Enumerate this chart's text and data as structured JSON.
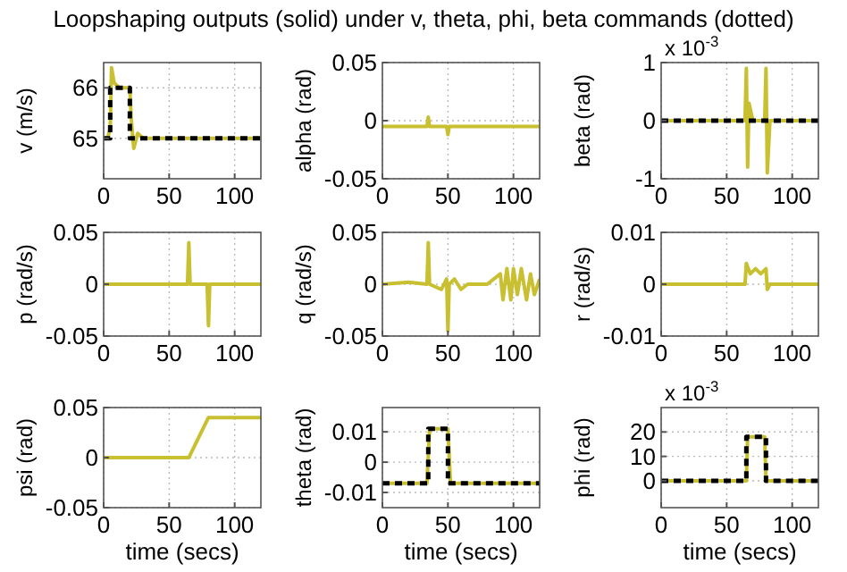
{
  "chart_data": [
    {
      "type": "line",
      "title": "Loopshaping outputs (solid) under v, theta, phi, beta commands (dotted)",
      "ylabel": "v (m/s)",
      "xlim": [
        0,
        120
      ],
      "xticks": [
        0,
        50,
        100
      ],
      "ylim": [
        64.2,
        66.5
      ],
      "yticks": [
        65,
        66
      ],
      "grid": true,
      "series": [
        {
          "color": "#c8c030",
          "line_style": "solid",
          "x": [
            0,
            3,
            5,
            6,
            8,
            12,
            18,
            20,
            21,
            23,
            26,
            30,
            40,
            60,
            80,
            100,
            120
          ],
          "values": [
            65,
            65,
            65.2,
            66.4,
            66.1,
            66,
            66,
            66,
            65.4,
            64.8,
            65.1,
            65,
            65,
            65,
            65,
            65,
            65
          ]
        },
        {
          "color": "#000000",
          "line_style": "dotted",
          "x": [
            0,
            5,
            5,
            20,
            20,
            120
          ],
          "values": [
            65,
            65,
            66,
            66,
            65,
            65
          ]
        }
      ]
    },
    {
      "type": "line",
      "ylabel": "alpha (rad)",
      "xlim": [
        0,
        120
      ],
      "xticks": [
        0,
        50,
        100
      ],
      "ylim": [
        -0.05,
        0.05
      ],
      "yticks": [
        -0.05,
        0,
        0.05
      ],
      "grid": true,
      "series": [
        {
          "color": "#c8c030",
          "line_style": "solid",
          "x": [
            0,
            34,
            35,
            36,
            49,
            50,
            51,
            120
          ],
          "values": [
            -0.005,
            -0.005,
            0.003,
            -0.005,
            -0.005,
            -0.012,
            -0.005,
            -0.005
          ]
        }
      ]
    },
    {
      "type": "line",
      "ylabel": "beta (rad)",
      "annotations": [
        "x 10$^{-3}$"
      ],
      "xlim": [
        0,
        120
      ],
      "xticks": [
        0,
        50,
        100
      ],
      "ylim": [
        -1,
        1
      ],
      "yticks": [
        -1,
        0,
        1
      ],
      "grid": true,
      "series": [
        {
          "color": "#c8c030",
          "line_style": "solid",
          "x": [
            0,
            64,
            65,
            66,
            67,
            70,
            79,
            80,
            81,
            83,
            120
          ],
          "values": [
            0,
            0,
            0.9,
            -0.8,
            0.3,
            0,
            0,
            0.9,
            -0.9,
            0,
            0
          ]
        },
        {
          "color": "#000000",
          "line_style": "dotted",
          "x": [
            0,
            120
          ],
          "values": [
            0,
            0
          ]
        }
      ]
    },
    {
      "type": "line",
      "ylabel": "p (rad/s)",
      "xlim": [
        0,
        120
      ],
      "xticks": [
        0,
        50,
        100
      ],
      "ylim": [
        -0.05,
        0.05
      ],
      "yticks": [
        -0.05,
        0,
        0.05
      ],
      "grid": true,
      "series": [
        {
          "color": "#c8c030",
          "line_style": "solid",
          "x": [
            0,
            64,
            65,
            66,
            70,
            79,
            80,
            81,
            120
          ],
          "values": [
            0,
            0,
            0.04,
            0,
            0,
            0,
            -0.04,
            0,
            0
          ]
        }
      ]
    },
    {
      "type": "line",
      "ylabel": "q (rad/s)",
      "xlim": [
        0,
        120
      ],
      "xticks": [
        0,
        50,
        100
      ],
      "ylim": [
        -0.05,
        0.05
      ],
      "yticks": [
        -0.05,
        0,
        0.05
      ],
      "grid": true,
      "series": [
        {
          "color": "#c8c030",
          "line_style": "solid",
          "x": [
            0,
            20,
            34,
            35,
            36,
            45,
            49,
            50,
            51,
            55,
            60,
            65,
            70,
            80,
            90,
            92,
            95,
            98,
            100,
            103,
            106,
            110,
            113,
            116,
            120
          ],
          "values": [
            0,
            0.002,
            0,
            0.04,
            0,
            -0.005,
            0.005,
            -0.045,
            0,
            0.005,
            -0.005,
            0,
            0,
            0,
            0.01,
            -0.015,
            0.015,
            -0.015,
            0.015,
            -0.01,
            0.015,
            -0.015,
            0.01,
            -0.01,
            0.005
          ]
        }
      ]
    },
    {
      "type": "line",
      "ylabel": "r (rad/s)",
      "xlim": [
        0,
        120
      ],
      "xticks": [
        0,
        50,
        100
      ],
      "ylim": [
        -0.01,
        0.01
      ],
      "yticks": [
        -0.01,
        0,
        0.01
      ],
      "grid": true,
      "series": [
        {
          "color": "#c8c030",
          "line_style": "solid",
          "x": [
            0,
            64,
            65,
            68,
            72,
            76,
            80,
            81,
            83,
            120
          ],
          "values": [
            0,
            0,
            0.004,
            0.002,
            0.003,
            0.002,
            0.003,
            -0.001,
            0,
            0
          ]
        }
      ]
    },
    {
      "type": "line",
      "ylabel": "psi (rad)",
      "xlabel": "time (secs)",
      "xlim": [
        0,
        120
      ],
      "xticks": [
        0,
        50,
        100
      ],
      "ylim": [
        -0.05,
        0.05
      ],
      "yticks": [
        -0.05,
        0,
        0.05
      ],
      "grid": true,
      "series": [
        {
          "color": "#c8c030",
          "line_style": "solid",
          "x": [
            0,
            65,
            80,
            120
          ],
          "values": [
            0,
            0,
            0.04,
            0.04
          ]
        }
      ]
    },
    {
      "type": "line",
      "ylabel": "theta (rad)",
      "xlabel": "time (secs)",
      "xlim": [
        0,
        120
      ],
      "xticks": [
        0,
        50,
        100
      ],
      "ylim": [
        -0.015,
        0.018
      ],
      "yticks": [
        -0.01,
        0,
        0.01
      ],
      "grid": true,
      "series": [
        {
          "color": "#c8c030",
          "line_style": "solid",
          "x": [
            0,
            20,
            34,
            36,
            50,
            52,
            70,
            120
          ],
          "values": [
            -0.007,
            -0.007,
            -0.007,
            0.011,
            0.011,
            -0.007,
            -0.007,
            -0.007
          ]
        },
        {
          "color": "#000000",
          "line_style": "dotted",
          "x": [
            0,
            35,
            35,
            50,
            50,
            120
          ],
          "values": [
            -0.007,
            -0.007,
            0.011,
            0.011,
            -0.007,
            -0.007
          ]
        }
      ]
    },
    {
      "type": "line",
      "ylabel": "phi (rad)",
      "xlabel": "time (secs)",
      "annotations": [
        "x 10$^{-3}$"
      ],
      "xlim": [
        0,
        120
      ],
      "xticks": [
        0,
        50,
        100
      ],
      "ylim": [
        -11,
        30
      ],
      "yticks": [
        0,
        10,
        20
      ],
      "grid": true,
      "series": [
        {
          "color": "#c8c030",
          "line_style": "solid",
          "x": [
            0,
            65,
            66,
            79,
            80,
            120
          ],
          "values": [
            0,
            0,
            18,
            18,
            0,
            0
          ]
        },
        {
          "color": "#000000",
          "line_style": "dotted",
          "x": [
            0,
            65,
            65,
            80,
            80,
            120
          ],
          "values": [
            0,
            0,
            18,
            18,
            0,
            0
          ]
        }
      ]
    }
  ]
}
